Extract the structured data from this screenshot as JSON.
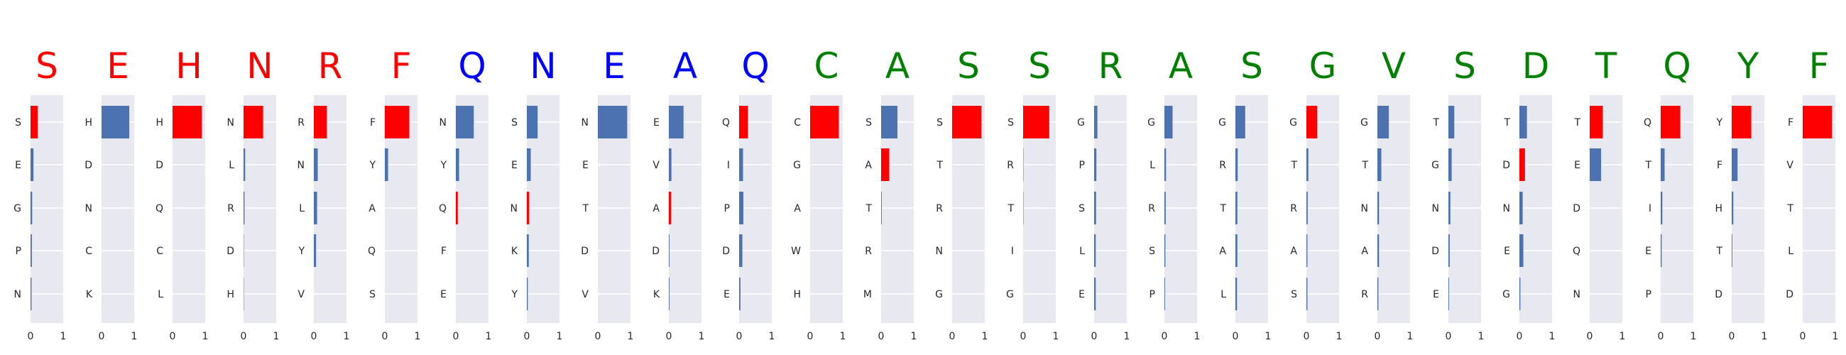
{
  "colors": {
    "panel_bg": "#e8e8f1",
    "gridline": "#ffffff",
    "red": "#ff0000",
    "blue": "#4c72b0",
    "letter_blue": "#0000ff",
    "letter_green": "#008000",
    "text": "#262626"
  },
  "chart_data": {
    "type": "bar",
    "orientation": "horizontal",
    "xlim": [
      0,
      1
    ],
    "xticks": [
      "0",
      "1"
    ],
    "grid": true,
    "panels": [
      {
        "letter": "S",
        "letter_color": "red",
        "labels": [
          "S",
          "E",
          "G",
          "P",
          "N"
        ],
        "values": [
          0.22,
          0.09,
          0.05,
          0.04,
          0.03
        ],
        "colors": [
          "red",
          "blue",
          "blue",
          "blue",
          "blue"
        ]
      },
      {
        "letter": "E",
        "letter_color": "red",
        "labels": [
          "H",
          "D",
          "N",
          "C",
          "K"
        ],
        "values": [
          0.85,
          0,
          0,
          0,
          0
        ],
        "colors": [
          "blue",
          "blue",
          "blue",
          "blue",
          "blue"
        ]
      },
      {
        "letter": "H",
        "letter_color": "red",
        "labels": [
          "H",
          "D",
          "Q",
          "C",
          "L"
        ],
        "values": [
          0.9,
          0,
          0,
          0,
          0
        ],
        "colors": [
          "red",
          "blue",
          "blue",
          "blue",
          "blue"
        ]
      },
      {
        "letter": "N",
        "letter_color": "red",
        "labels": [
          "N",
          "L",
          "R",
          "D",
          "H"
        ],
        "values": [
          0.6,
          0.05,
          0.03,
          0.01,
          0.01
        ],
        "colors": [
          "red",
          "blue",
          "blue",
          "blue",
          "blue"
        ]
      },
      {
        "letter": "R",
        "letter_color": "red",
        "labels": [
          "R",
          "N",
          "L",
          "Y",
          "V"
        ],
        "values": [
          0.4,
          0.12,
          0.1,
          0.07,
          0
        ],
        "colors": [
          "red",
          "blue",
          "blue",
          "blue",
          "blue"
        ]
      },
      {
        "letter": "F",
        "letter_color": "red",
        "labels": [
          "F",
          "Y",
          "A",
          "Q",
          "S"
        ],
        "values": [
          0.75,
          0.1,
          0,
          0,
          0
        ],
        "colors": [
          "red",
          "blue",
          "blue",
          "blue",
          "blue"
        ]
      },
      {
        "letter": "Q",
        "letter_color": "letter_blue",
        "labels": [
          "N",
          "Y",
          "Q",
          "F",
          "E"
        ],
        "values": [
          0.55,
          0.1,
          0.06,
          0,
          0
        ],
        "colors": [
          "blue",
          "blue",
          "red",
          "blue",
          "blue"
        ]
      },
      {
        "letter": "N",
        "letter_color": "letter_blue",
        "labels": [
          "S",
          "E",
          "N",
          "K",
          "Y"
        ],
        "values": [
          0.33,
          0.12,
          0.07,
          0.06,
          0.03
        ],
        "colors": [
          "blue",
          "blue",
          "red",
          "blue",
          "blue"
        ]
      },
      {
        "letter": "E",
        "letter_color": "letter_blue",
        "labels": [
          "N",
          "E",
          "T",
          "D",
          "V"
        ],
        "values": [
          0.9,
          0,
          0,
          0,
          0
        ],
        "colors": [
          "blue",
          "blue",
          "blue",
          "blue",
          "blue"
        ]
      },
      {
        "letter": "A",
        "letter_color": "letter_blue",
        "labels": [
          "E",
          "V",
          "A",
          "D",
          "K"
        ],
        "values": [
          0.45,
          0.08,
          0.07,
          0.02,
          0.02
        ],
        "colors": [
          "blue",
          "blue",
          "red",
          "blue",
          "blue"
        ]
      },
      {
        "letter": "Q",
        "letter_color": "letter_blue",
        "labels": [
          "Q",
          "I",
          "P",
          "D",
          "E"
        ],
        "values": [
          0.27,
          0.12,
          0.13,
          0.1,
          0.04
        ],
        "colors": [
          "red",
          "blue",
          "blue",
          "blue",
          "blue"
        ]
      },
      {
        "letter": "C",
        "letter_color": "letter_green",
        "labels": [
          "C",
          "G",
          "A",
          "W",
          "H"
        ],
        "values": [
          0.88,
          0,
          0,
          0,
          0
        ],
        "colors": [
          "red",
          "blue",
          "blue",
          "blue",
          "blue"
        ]
      },
      {
        "letter": "A",
        "letter_color": "letter_green",
        "labels": [
          "S",
          "A",
          "T",
          "R",
          "M"
        ],
        "values": [
          0.5,
          0.25,
          0.02,
          0,
          0
        ],
        "colors": [
          "blue",
          "red",
          "blue",
          "blue",
          "blue"
        ]
      },
      {
        "letter": "S",
        "letter_color": "letter_green",
        "labels": [
          "S",
          "T",
          "R",
          "N",
          "G"
        ],
        "values": [
          0.9,
          0,
          0,
          0,
          0
        ],
        "colors": [
          "red",
          "blue",
          "blue",
          "blue",
          "blue"
        ]
      },
      {
        "letter": "S",
        "letter_color": "letter_green",
        "labels": [
          "S",
          "R",
          "T",
          "I",
          "G"
        ],
        "values": [
          0.8,
          0.01,
          0.01,
          0,
          0
        ],
        "colors": [
          "red",
          "blue",
          "blue",
          "blue",
          "blue"
        ]
      },
      {
        "letter": "R",
        "letter_color": "letter_green",
        "labels": [
          "G",
          "P",
          "S",
          "L",
          "E"
        ],
        "values": [
          0.1,
          0.07,
          0.06,
          0.05,
          0.05
        ],
        "colors": [
          "blue",
          "blue",
          "blue",
          "blue",
          "blue"
        ]
      },
      {
        "letter": "A",
        "letter_color": "letter_green",
        "labels": [
          "G",
          "L",
          "R",
          "S",
          "P"
        ],
        "values": [
          0.25,
          0.05,
          0.04,
          0.03,
          0.02
        ],
        "colors": [
          "blue",
          "blue",
          "blue",
          "blue",
          "blue"
        ]
      },
      {
        "letter": "S",
        "letter_color": "letter_green",
        "labels": [
          "G",
          "R",
          "T",
          "A",
          "L"
        ],
        "values": [
          0.3,
          0.07,
          0.06,
          0.06,
          0.05
        ],
        "colors": [
          "blue",
          "blue",
          "blue",
          "blue",
          "blue"
        ]
      },
      {
        "letter": "G",
        "letter_color": "letter_green",
        "labels": [
          "G",
          "T",
          "R",
          "A",
          "S"
        ],
        "values": [
          0.33,
          0.06,
          0.04,
          0.03,
          0.03
        ],
        "colors": [
          "red",
          "blue",
          "blue",
          "blue",
          "blue"
        ]
      },
      {
        "letter": "V",
        "letter_color": "letter_green",
        "labels": [
          "G",
          "T",
          "N",
          "A",
          "R"
        ],
        "values": [
          0.35,
          0.12,
          0.05,
          0.05,
          0.03
        ],
        "colors": [
          "blue",
          "blue",
          "blue",
          "blue",
          "blue"
        ]
      },
      {
        "letter": "S",
        "letter_color": "letter_green",
        "labels": [
          "T",
          "G",
          "N",
          "D",
          "E"
        ],
        "values": [
          0.18,
          0.1,
          0.06,
          0.04,
          0.02
        ],
        "colors": [
          "blue",
          "blue",
          "blue",
          "blue",
          "blue"
        ]
      },
      {
        "letter": "D",
        "letter_color": "letter_green",
        "labels": [
          "T",
          "D",
          "N",
          "E",
          "G"
        ],
        "values": [
          0.23,
          0.17,
          0.1,
          0.12,
          0.03
        ],
        "colors": [
          "blue",
          "red",
          "blue",
          "blue",
          "blue"
        ]
      },
      {
        "letter": "T",
        "letter_color": "letter_green",
        "labels": [
          "T",
          "E",
          "D",
          "Q",
          "N"
        ],
        "values": [
          0.4,
          0.35,
          0,
          0,
          0
        ],
        "colors": [
          "red",
          "blue",
          "blue",
          "blue",
          "blue"
        ]
      },
      {
        "letter": "Q",
        "letter_color": "letter_green",
        "labels": [
          "Q",
          "T",
          "I",
          "E",
          "P"
        ],
        "values": [
          0.6,
          0.12,
          0.05,
          0.03,
          0
        ],
        "colors": [
          "red",
          "blue",
          "blue",
          "blue",
          "blue"
        ]
      },
      {
        "letter": "Y",
        "letter_color": "letter_green",
        "labels": [
          "Y",
          "F",
          "H",
          "T",
          "D"
        ],
        "values": [
          0.6,
          0.18,
          0.05,
          0.02,
          0
        ],
        "colors": [
          "red",
          "blue",
          "blue",
          "blue",
          "blue"
        ]
      },
      {
        "letter": "F",
        "letter_color": "letter_green",
        "labels": [
          "F",
          "V",
          "T",
          "L",
          "D"
        ],
        "values": [
          0.9,
          0,
          0,
          0,
          0
        ],
        "colors": [
          "red",
          "blue",
          "blue",
          "blue",
          "blue"
        ]
      }
    ]
  }
}
